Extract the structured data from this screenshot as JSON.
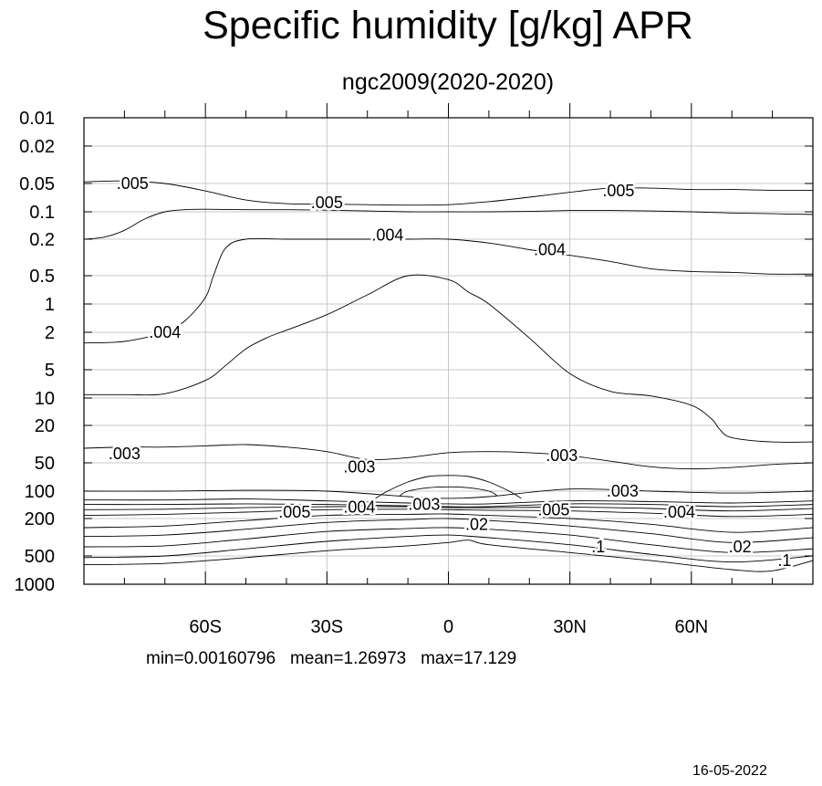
{
  "title": "Specific humidity [g/kg] APR",
  "subtitle": "ngc2009(2020-2020)",
  "stats": {
    "min_text": "min=0.00160796",
    "mean_text": "mean=1.26973",
    "max_text": "max=17.129"
  },
  "date": "16-05-2022",
  "chart_data": {
    "type": "contour",
    "title": "Specific humidity [g/kg] APR",
    "subtitle": "ngc2009(2020-2020)",
    "x_axis": {
      "range": [
        -90,
        90
      ],
      "ticks": [
        {
          "value": -60,
          "label": "60S"
        },
        {
          "value": -30,
          "label": "30S"
        },
        {
          "value": 0,
          "label": "0"
        },
        {
          "value": 30,
          "label": "30N"
        },
        {
          "value": 60,
          "label": "60N"
        }
      ]
    },
    "y_axis": {
      "scale": "log-pressure",
      "range": [
        1000,
        0.01
      ],
      "ticks": [
        "0.01",
        "0.02",
        "0.05",
        "0.1",
        "0.2",
        "0.5",
        "1",
        "2",
        "5",
        "10",
        "20",
        "50",
        "100",
        "200",
        "500",
        "1000"
      ]
    },
    "grid": true,
    "contour_labels": [
      {
        "text": ".005",
        "lat": -78,
        "p": 0.05
      },
      {
        "text": ".005",
        "lat": -30,
        "p": 0.08
      },
      {
        "text": ".005",
        "lat": 42,
        "p": 0.06
      },
      {
        "text": ".004",
        "lat": -15,
        "p": 0.18
      },
      {
        "text": ".004",
        "lat": 25,
        "p": 0.26
      },
      {
        "text": ".004",
        "lat": -70,
        "p": 2.0
      },
      {
        "text": ".003",
        "lat": -80,
        "p": 40
      },
      {
        "text": ".003",
        "lat": -22,
        "p": 55
      },
      {
        "text": ".003",
        "lat": 28,
        "p": 42
      },
      {
        "text": ".003",
        "lat": 43,
        "p": 100
      },
      {
        "text": ".005",
        "lat": -38,
        "p": 170
      },
      {
        "text": ".004",
        "lat": -22,
        "p": 150
      },
      {
        "text": ".003",
        "lat": -6,
        "p": 140
      },
      {
        "text": ".02",
        "lat": 7,
        "p": 230
      },
      {
        "text": ".005",
        "lat": 26,
        "p": 160
      },
      {
        "text": ".004",
        "lat": 57,
        "p": 170
      },
      {
        "text": ".02",
        "lat": 72,
        "p": 400
      },
      {
        "text": ".1",
        "lat": 37,
        "p": 400
      },
      {
        "text": ".1",
        "lat": 83,
        "p": 560
      }
    ],
    "contour_lines": [
      {
        "level": ".005",
        "lat": [
          -90,
          -80,
          -70,
          -60,
          -50,
          -40,
          -30,
          -20,
          -10,
          0,
          10,
          20,
          30,
          40,
          50,
          60,
          70,
          80,
          90
        ],
        "p": [
          0.048,
          0.047,
          0.05,
          0.06,
          0.075,
          0.082,
          0.083,
          0.084,
          0.085,
          0.084,
          0.078,
          0.07,
          0.062,
          0.056,
          0.056,
          0.058,
          0.058,
          0.059,
          0.059
        ]
      },
      {
        "level": ".005",
        "lat": [
          -90,
          -85,
          -80,
          -75,
          -70,
          -65,
          -60,
          -50,
          -40,
          -30,
          -20,
          -10,
          0,
          10,
          20,
          30,
          40,
          50,
          60,
          70,
          80,
          90
        ],
        "p": [
          0.2,
          0.19,
          0.16,
          0.12,
          0.1,
          0.095,
          0.094,
          0.095,
          0.095,
          0.096,
          0.098,
          0.1,
          0.1,
          0.1,
          0.099,
          0.097,
          0.097,
          0.098,
          0.1,
          0.103,
          0.105,
          0.107
        ]
      },
      {
        "level": ".004",
        "lat": [
          -90,
          -80,
          -70,
          -65,
          -60,
          -58,
          -55,
          -50,
          -40,
          -30,
          -20,
          -10,
          0,
          10,
          20,
          30,
          40,
          50,
          60,
          70,
          80,
          90
        ],
        "p": [
          2.6,
          2.5,
          2.0,
          1.5,
          0.85,
          0.5,
          0.25,
          0.2,
          0.2,
          0.2,
          0.2,
          0.2,
          0.2,
          0.22,
          0.26,
          0.3,
          0.35,
          0.42,
          0.45,
          0.46,
          0.48,
          0.48
        ]
      },
      {
        "level": ".004",
        "lat": [
          -90,
          -80,
          -70,
          -60,
          -55,
          -50,
          -45,
          -40,
          -30,
          -20,
          -10,
          0,
          5,
          10,
          20,
          30,
          40,
          50,
          60,
          65,
          67,
          70,
          80,
          90
        ],
        "p": [
          9.2,
          9.2,
          9.0,
          6.5,
          4.5,
          3.0,
          2.3,
          1.9,
          1.3,
          0.8,
          0.5,
          0.55,
          0.75,
          1.0,
          2.3,
          5.5,
          8.5,
          9.5,
          12,
          17,
          22,
          27,
          30,
          30
        ]
      },
      {
        "level": ".003",
        "lat": [
          -90,
          -80,
          -70,
          -60,
          -50,
          -40,
          -30,
          -20,
          -10,
          0,
          10,
          20,
          30,
          40,
          50,
          60,
          70,
          80,
          90
        ],
        "p": [
          35,
          34,
          34,
          33,
          32,
          34,
          38,
          46,
          44,
          39,
          38,
          39,
          42,
          48,
          55,
          58,
          56,
          52,
          50
        ]
      },
      {
        "level": ".003",
        "lat": [
          -18,
          -15,
          -10,
          -5,
          0,
          5,
          10,
          15,
          18
        ],
        "p": [
          120,
          100,
          80,
          70,
          68,
          70,
          80,
          100,
          120
        ]
      },
      {
        "level": ".003",
        "lat": [
          -12,
          -10,
          -5,
          0,
          5,
          10,
          12
        ],
        "p": [
          112,
          100,
          92,
          90,
          92,
          100,
          112
        ]
      },
      {
        "level": ".003",
        "lat": [
          -90,
          -70,
          -50,
          -30,
          -10,
          0,
          10,
          30,
          50,
          70,
          90
        ],
        "p": [
          100,
          100,
          98,
          100,
          115,
          120,
          115,
          95,
          100,
          105,
          100
        ]
      },
      {
        "level": ".005",
        "lat": [
          -90,
          -70,
          -50,
          -30,
          -10,
          0,
          10,
          30,
          50,
          70,
          90
        ],
        "p": [
          125,
          125,
          122,
          128,
          135,
          138,
          138,
          128,
          130,
          135,
          128
        ]
      },
      {
        "level": ".004",
        "lat": [
          -90,
          -70,
          -50,
          -30,
          -10,
          0,
          10,
          30,
          50,
          70,
          90
        ],
        "p": [
          140,
          140,
          138,
          140,
          145,
          148,
          148,
          138,
          140,
          148,
          140
        ]
      },
      {
        "level": ".003",
        "lat": [
          -90,
          -70,
          -50,
          -30,
          -10,
          0,
          10,
          30,
          50,
          70,
          90
        ],
        "p": [
          160,
          158,
          152,
          148,
          148,
          152,
          152,
          150,
          155,
          165,
          155
        ]
      },
      {
        "level": ".02",
        "lat": [
          -90,
          -70,
          -50,
          -30,
          -10,
          0,
          10,
          30,
          50,
          70,
          90
        ],
        "p": [
          185,
          180,
          170,
          160,
          158,
          160,
          162,
          165,
          175,
          190,
          180
        ]
      },
      {
        "level": ".1",
        "lat": [
          -90,
          -70,
          -50,
          -30,
          -10,
          0,
          10,
          30,
          50,
          70,
          90
        ],
        "p": [
          250,
          240,
          210,
          185,
          180,
          178,
          185,
          200,
          230,
          280,
          250
        ]
      },
      {
        "level": ".1",
        "lat": [
          -90,
          -70,
          -50,
          -30,
          -10,
          0,
          10,
          30,
          50,
          70,
          90
        ],
        "p": [
          310,
          300,
          260,
          220,
          205,
          200,
          210,
          240,
          290,
          360,
          320
        ]
      },
      {
        "level": ".1",
        "lat": [
          -90,
          -70,
          -50,
          -30,
          -10,
          0,
          10,
          30,
          50,
          70,
          90
        ],
        "p": [
          400,
          390,
          330,
          275,
          255,
          250,
          260,
          300,
          380,
          460,
          420
        ]
      },
      {
        "level": ".1",
        "lat": [
          -90,
          -70,
          -50,
          -30,
          -10,
          0,
          10,
          30,
          50,
          70,
          90
        ],
        "p": [
          520,
          500,
          420,
          350,
          310,
          300,
          320,
          380,
          480,
          580,
          500
        ]
      },
      {
        "level": ".1",
        "lat": [
          -90,
          -70,
          -50,
          -30,
          -10,
          0,
          5,
          10,
          30,
          50,
          70,
          80,
          90
        ],
        "p": [
          620,
          600,
          520,
          440,
          390,
          360,
          340,
          380,
          460,
          560,
          700,
          720,
          560
        ]
      }
    ]
  }
}
